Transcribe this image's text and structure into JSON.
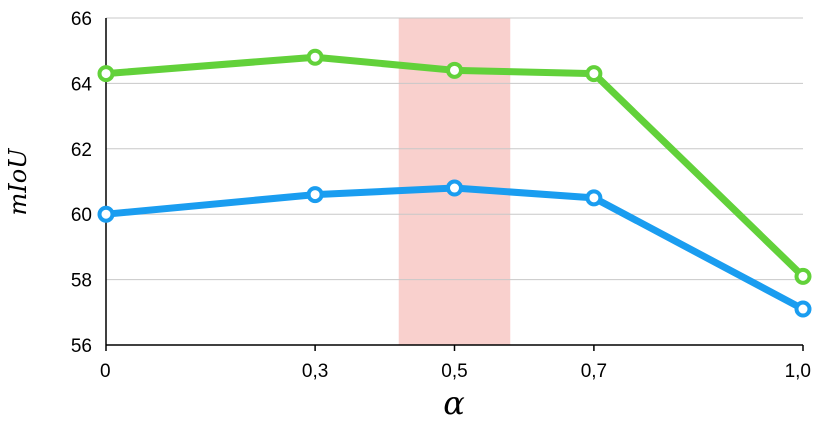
{
  "chart_data": {
    "type": "line",
    "title": "",
    "xlabel": "α",
    "ylabel": "mIoU",
    "categories": [
      "0",
      "0,3",
      "0,5",
      "0,7",
      "1,0"
    ],
    "x": [
      0,
      0.3,
      0.5,
      0.7,
      1.0
    ],
    "ylim": [
      56,
      66
    ],
    "yticks": [
      "56",
      "58",
      "60",
      "62",
      "64",
      "66"
    ],
    "grid": true,
    "highlight_range": [
      0.42,
      0.58
    ],
    "highlight_color": "#f9d0cd",
    "series": [
      {
        "color": "#62d13a",
        "values": [
          64.3,
          64.8,
          64.4,
          64.3,
          58.1
        ]
      },
      {
        "color": "#1a9df0",
        "values": [
          60.0,
          60.6,
          60.8,
          60.5,
          57.1
        ]
      }
    ]
  }
}
